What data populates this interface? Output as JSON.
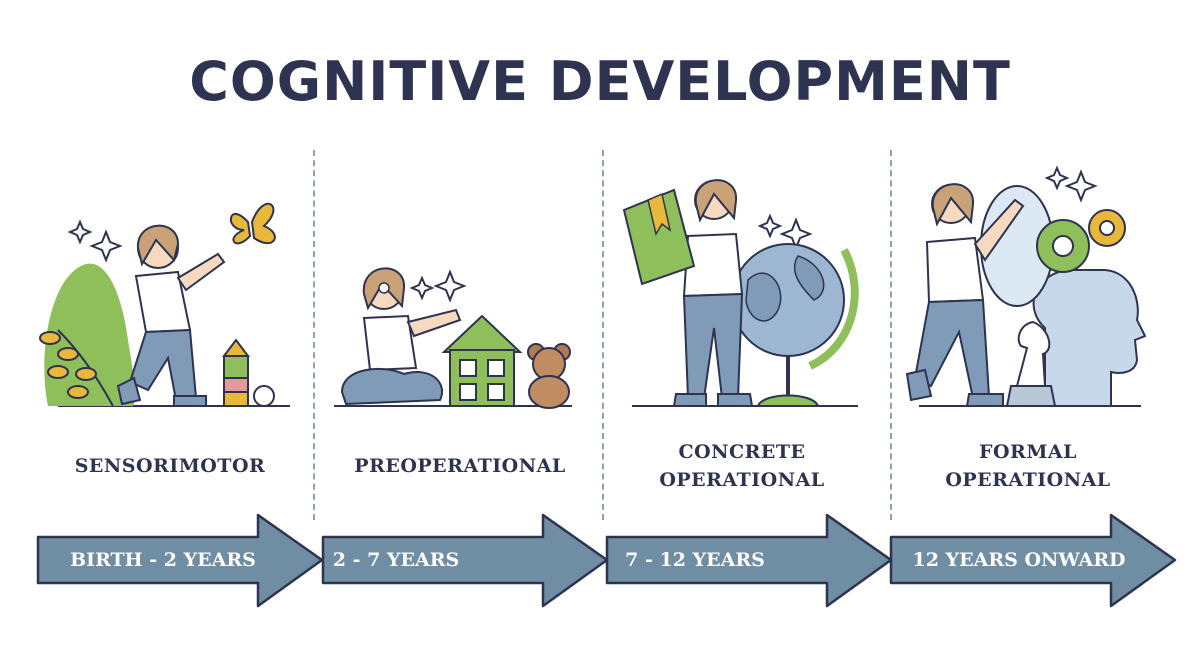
{
  "title": "COGNITIVE DEVELOPMENT",
  "colors": {
    "navy": "#2d3350",
    "arrow_fill": "#6f8ea3",
    "arrow_stroke": "#2d3350",
    "green": "#8fbf5a",
    "skin": "#f7d9c0",
    "hair": "#c9a277",
    "jeans": "#7f9bb8",
    "gold": "#e8b83a"
  },
  "stages": [
    {
      "label_lines": [
        "SENSORIMOTOR"
      ],
      "age": "BIRTH - 2 YEARS",
      "illustration": "child-reaching-butterfly-with-blocks"
    },
    {
      "label_lines": [
        "PREOPERATIONAL"
      ],
      "age": "2 - 7 YEARS",
      "illustration": "child-with-toy-house-and-teddy-bear"
    },
    {
      "label_lines": [
        "CONCRETE",
        "OPERATIONAL"
      ],
      "age": "7 - 12 YEARS",
      "illustration": "child-with-book-and-globe"
    },
    {
      "label_lines": [
        "FORMAL",
        "OPERATIONAL"
      ],
      "age": "12 YEARS ONWARD",
      "illustration": "person-with-gears-chess-and-head"
    }
  ]
}
